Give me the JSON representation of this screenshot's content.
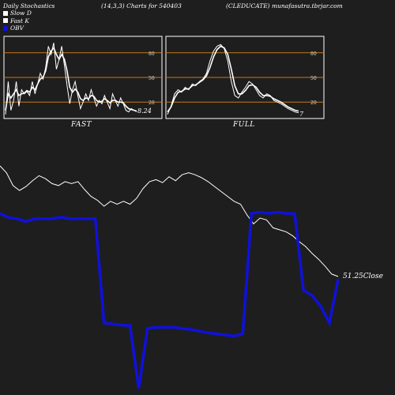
{
  "header": {
    "left": "Daily Stochastics",
    "mid": "(14,3,3) Charts for 540403",
    "right": "(CLEDUCATE) munafasutra.tbrjar.com"
  },
  "legend": [
    {
      "label": "Slow  D",
      "color": "#ffffff"
    },
    {
      "label": "Fast K",
      "color": "#ffffff"
    },
    {
      "label": "OBV",
      "color": "#1010dd"
    }
  ],
  "panels": {
    "fast_label": "FAST",
    "full_label": "FULL",
    "levels": [
      "80",
      "50",
      "20"
    ],
    "fast_value": "8.24",
    "full_value": "7"
  },
  "close_label": "51.25Close",
  "chart_data": [
    {
      "type": "line",
      "name": "fast-stochastics",
      "ylim": [
        0,
        100
      ],
      "reference_lines": [
        80,
        50,
        20
      ],
      "series": [
        {
          "name": "Fast K",
          "values": [
            5,
            45,
            10,
            22,
            45,
            15,
            35,
            30,
            33,
            28,
            45,
            30,
            42,
            55,
            48,
            62,
            88,
            78,
            92,
            60,
            72,
            88,
            65,
            40,
            18,
            35,
            45,
            28,
            12,
            20,
            30,
            22,
            35,
            25,
            15,
            22,
            18,
            28,
            20,
            12,
            30,
            22,
            15,
            25,
            18,
            10,
            8,
            12,
            10,
            8.24
          ]
        },
        {
          "name": "Slow D",
          "values": [
            10,
            30,
            25,
            30,
            35,
            28,
            30,
            31,
            34,
            32,
            38,
            35,
            42,
            48,
            50,
            58,
            75,
            82,
            86,
            78,
            72,
            78,
            72,
            58,
            38,
            32,
            36,
            32,
            24,
            22,
            25,
            24,
            28,
            27,
            22,
            20,
            21,
            24,
            22,
            19,
            22,
            22,
            20,
            20,
            19,
            15,
            12,
            11,
            10,
            9
          ]
        }
      ]
    },
    {
      "type": "line",
      "name": "full-stochastics",
      "ylim": [
        0,
        100
      ],
      "reference_lines": [
        80,
        50,
        20
      ],
      "series": [
        {
          "name": "Fast K",
          "values": [
            5,
            15,
            30,
            35,
            32,
            38,
            35,
            42,
            40,
            45,
            48,
            55,
            70,
            82,
            88,
            90,
            85,
            70,
            45,
            28,
            25,
            32,
            38,
            45,
            42,
            35,
            28,
            25,
            30,
            28,
            22,
            20,
            18,
            15,
            12,
            10,
            8,
            7
          ]
        },
        {
          "name": "Slow D",
          "values": [
            8,
            14,
            25,
            32,
            33,
            36,
            36,
            40,
            41,
            44,
            47,
            52,
            62,
            75,
            84,
            88,
            86,
            78,
            60,
            40,
            30,
            30,
            34,
            40,
            41,
            38,
            32,
            28,
            28,
            27,
            24,
            22,
            20,
            17,
            14,
            12,
            10,
            9
          ]
        }
      ]
    },
    {
      "type": "line",
      "name": "price-and-obv",
      "series": [
        {
          "name": "Close",
          "values": [
            62.5,
            61.8,
            60.5,
            60.0,
            60.4,
            61.0,
            61.5,
            61.2,
            60.7,
            60.5,
            60.9,
            60.7,
            60.9,
            60.1,
            59.4,
            59.0,
            58.4,
            58.9,
            58.6,
            58.9,
            58.6,
            59.2,
            60.2,
            60.9,
            61.1,
            60.8,
            61.4,
            61.0,
            61.6,
            61.8,
            61.6,
            61.3,
            60.9,
            60.4,
            59.9,
            59.4,
            58.9,
            58.6,
            57.5,
            56.6,
            57.2,
            57.0,
            56.2,
            56.0,
            55.8,
            55.4,
            54.8,
            54.3,
            53.6,
            53.0,
            52.3,
            51.5,
            51.25
          ]
        },
        {
          "name": "OBV",
          "values": [
            300,
            292,
            290,
            285,
            290,
            290,
            290,
            293,
            290,
            290,
            290,
            290,
            100,
            98,
            96,
            95,
            -20,
            90,
            92,
            92,
            92,
            90,
            88,
            85,
            82,
            80,
            78,
            76,
            80,
            300,
            302,
            300,
            302,
            300,
            299,
            160,
            150,
            130,
            100,
            180
          ]
        }
      ]
    }
  ]
}
